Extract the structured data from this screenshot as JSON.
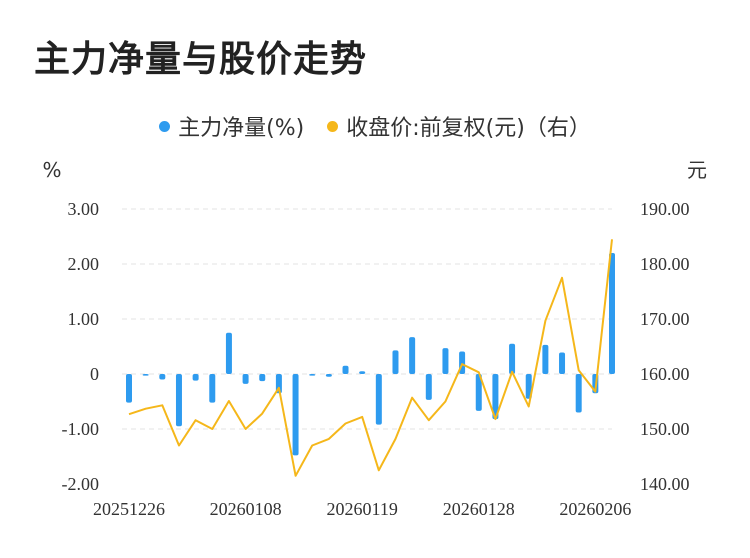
{
  "chart_data": {
    "type": "bar+line",
    "title": "主力净量与股价走势",
    "legend": [
      {
        "label": "主力净量(%)",
        "color": "#2e9bef",
        "kind": "bar"
      },
      {
        "label": "收盘价:前复权(元)（右）",
        "color": "#f5b71a",
        "kind": "line"
      }
    ],
    "left_axis": {
      "unit": "%",
      "min": -2,
      "max": 3,
      "ticks": [
        "3.00",
        "2.00",
        "1.00",
        "0",
        "-1.00",
        "-2.00"
      ],
      "tick_values": [
        3,
        2,
        1,
        0,
        -1,
        -2
      ]
    },
    "right_axis": {
      "unit": "元",
      "min": 140,
      "max": 190,
      "ticks": [
        "190.00",
        "180.00",
        "170.00",
        "160.00",
        "150.00",
        "140.00"
      ],
      "tick_values": [
        190,
        180,
        170,
        160,
        150,
        140
      ]
    },
    "x_labels": [
      "20251226",
      "20260108",
      "20260119",
      "20260128",
      "20260206"
    ],
    "x_label_indices": [
      0,
      7,
      14,
      21,
      28
    ],
    "grid": true,
    "legend_position": "top",
    "series": [
      {
        "name": "主力净量(%)",
        "type": "bar",
        "values": [
          -0.52,
          -0.03,
          -0.1,
          -0.95,
          -0.12,
          -0.52,
          0.75,
          -0.18,
          -0.13,
          -0.35,
          -1.48,
          -0.03,
          -0.05,
          0.15,
          0.05,
          -0.92,
          0.43,
          0.67,
          -0.47,
          0.47,
          0.41,
          -0.67,
          -0.82,
          0.55,
          -0.45,
          0.53,
          0.39,
          -0.7,
          -0.35,
          2.2
        ]
      },
      {
        "name": "收盘价:前复权(元)（右）",
        "type": "line",
        "values": [
          152.7,
          153.7,
          154.3,
          147.0,
          151.6,
          150.0,
          155.1,
          150.0,
          152.8,
          157.5,
          141.5,
          147.0,
          148.2,
          151.0,
          152.2,
          142.5,
          148.2,
          155.7,
          151.6,
          155.0,
          161.8,
          160.3,
          151.8,
          160.4,
          154.1,
          169.7,
          177.5,
          160.7,
          156.8,
          184.5
        ]
      }
    ]
  }
}
